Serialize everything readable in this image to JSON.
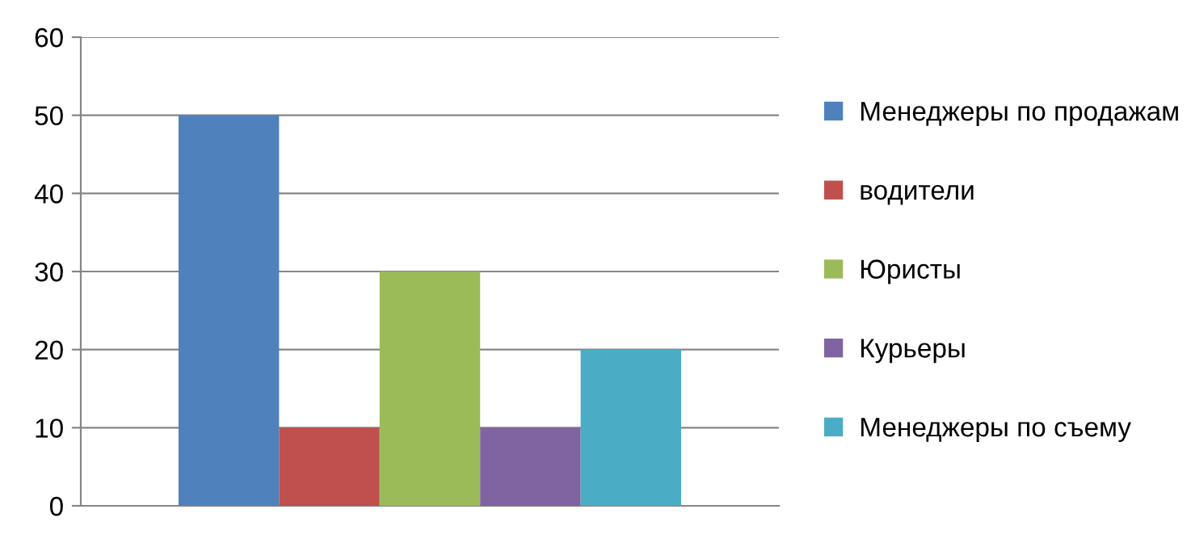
{
  "chart_data": {
    "type": "bar",
    "categories": [
      null
    ],
    "series": [
      {
        "name": "Менеджеры по продажам",
        "color": "#4f81bd",
        "values": [
          50
        ]
      },
      {
        "name": "водители",
        "color": "#c0504d",
        "values": [
          10
        ]
      },
      {
        "name": "Юристы",
        "color": "#9bbb59",
        "values": [
          30
        ]
      },
      {
        "name": "Курьеры",
        "color": "#8064a2",
        "values": [
          10
        ]
      },
      {
        "name": "Менеджеры по съему",
        "color": "#4bacc6",
        "values": [
          20
        ]
      }
    ],
    "ylim": [
      0,
      60
    ],
    "yticks": [
      0,
      10,
      20,
      30,
      40,
      50,
      60
    ],
    "grid": "y",
    "legend": "right"
  }
}
